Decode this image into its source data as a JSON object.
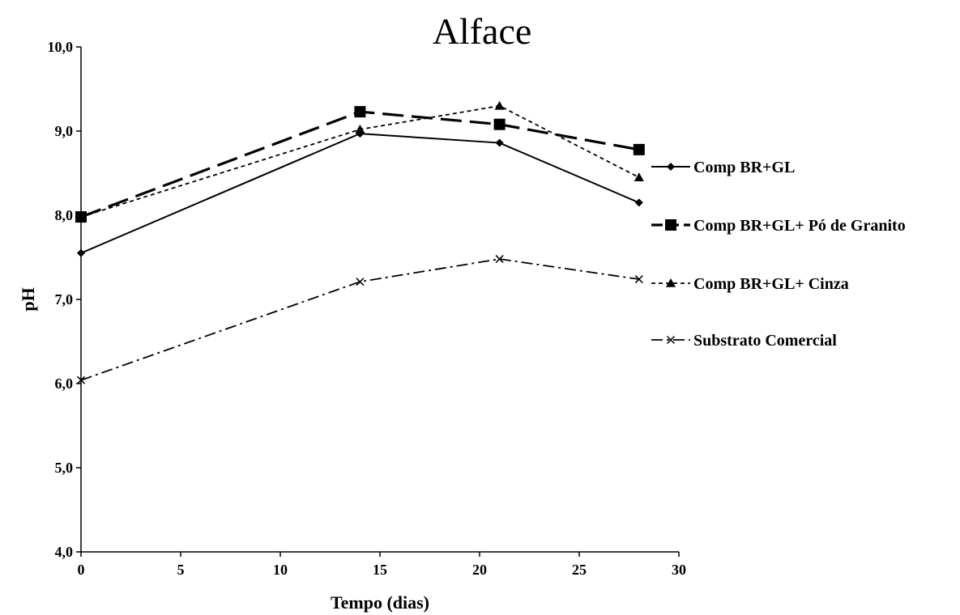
{
  "chart_data": {
    "type": "line",
    "title": "Alface",
    "xlabel": "Tempo (dias)",
    "ylabel": "pH",
    "xlim": [
      0,
      30
    ],
    "ylim": [
      4.0,
      10.0
    ],
    "xticks": [
      0,
      5,
      10,
      15,
      20,
      25,
      30
    ],
    "xtick_labels": [
      "0",
      "5",
      "10",
      "15",
      "20",
      "25",
      "30"
    ],
    "yticks": [
      4,
      5,
      6,
      7,
      8,
      9,
      10
    ],
    "ytick_labels": [
      "4,0",
      "5,0",
      "6,0",
      "7,0",
      "8,0",
      "9,0",
      "10,0"
    ],
    "grid": false,
    "legend_position": "right",
    "x": [
      0,
      14,
      21,
      28
    ],
    "series": [
      {
        "name": "Comp BR+GL",
        "values": [
          7.55,
          8.97,
          8.86,
          8.15
        ],
        "marker": "diamond",
        "line_style": "solid",
        "color": "#000000"
      },
      {
        "name": "Comp BR+GL+ Pó de Granito",
        "values": [
          7.98,
          9.23,
          9.08,
          8.78
        ],
        "marker": "square",
        "line_style": "long-dash",
        "color": "#000000"
      },
      {
        "name": "Comp BR+GL+ Cinza",
        "values": [
          7.98,
          9.02,
          9.3,
          8.45
        ],
        "marker": "triangle",
        "line_style": "short-dash",
        "color": "#000000"
      },
      {
        "name": "Substrato Comercial",
        "values": [
          6.04,
          7.21,
          7.48,
          7.24
        ],
        "marker": "x",
        "line_style": "dash-dot",
        "color": "#000000"
      }
    ]
  }
}
